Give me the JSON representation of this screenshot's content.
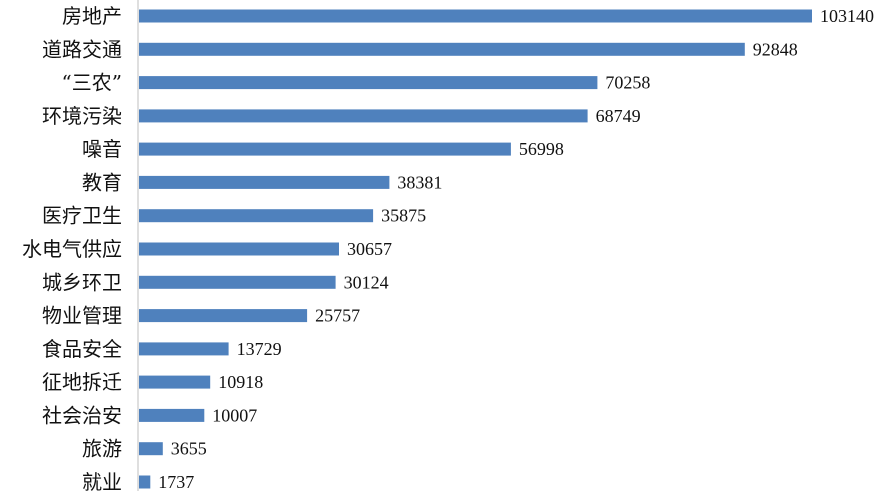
{
  "chart_data": {
    "type": "bar",
    "orientation": "horizontal",
    "title": "",
    "xlabel": "",
    "ylabel": "",
    "categories": [
      "房地产",
      "道路交通",
      "“三农”",
      "环境污染",
      "噪音",
      "教育",
      "医疗卫生",
      "水电气供应",
      "城乡环卫",
      "物业管理",
      "食品安全",
      "征地拆迁",
      "社会治安",
      "旅游",
      "就业"
    ],
    "values": [
      103140,
      92848,
      70258,
      68749,
      56998,
      38381,
      35875,
      30657,
      30124,
      25757,
      13729,
      10918,
      10007,
      3655,
      1737
    ],
    "xlim": [
      0,
      103140
    ],
    "data_labels": true,
    "grid": false,
    "legend": "none",
    "colors": {
      "bar": "#4F81BD",
      "axis": "#BFBFBF",
      "text": "#111111"
    }
  }
}
